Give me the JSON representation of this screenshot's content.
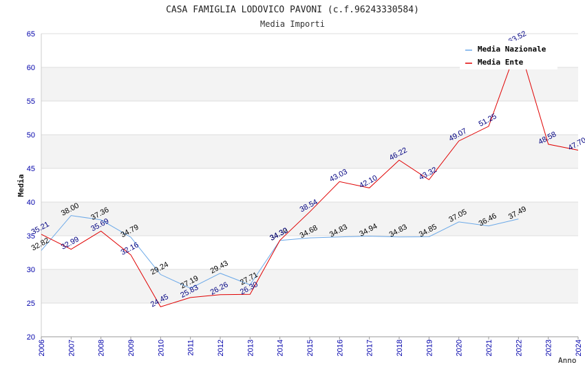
{
  "chart_data": {
    "type": "line",
    "title": "CASA FAMIGLIA LODOVICO PAVONI (c.f.96243330584)",
    "subtitle": "Media Importi",
    "xlabel": "Anno",
    "ylabel": "Media",
    "ylim": [
      20,
      65
    ],
    "yticks": [
      "20",
      "25",
      "30",
      "35",
      "40",
      "45",
      "50",
      "55",
      "60",
      "65"
    ],
    "categories": [
      "2006",
      "2007",
      "2008",
      "2009",
      "2010",
      "2011",
      "2012",
      "2013",
      "2014",
      "2015",
      "2016",
      "2017",
      "2018",
      "2019",
      "2020",
      "2021",
      "2022",
      "2023",
      "2024"
    ],
    "legend_position": "top-right",
    "series": [
      {
        "name": "Media Nazionale",
        "color": "#6aa8e8",
        "values": [
          32.82,
          38.0,
          37.36,
          34.79,
          29.24,
          27.19,
          29.43,
          27.71,
          34.3,
          34.68,
          34.83,
          34.94,
          34.83,
          34.85,
          37.05,
          36.46,
          37.49,
          null,
          null
        ],
        "labels": [
          "32.82",
          "38.00",
          "37.36",
          "34.79",
          "29.24",
          "27.19",
          "29.43",
          "27.71",
          "34.30",
          "34.68",
          "34.83",
          "34.94",
          "34.83",
          "34.85",
          "37.05",
          "36.46",
          "37.49",
          null,
          null
        ]
      },
      {
        "name": "Media Ente",
        "color": "#e00000",
        "values": [
          35.21,
          32.99,
          35.69,
          32.16,
          24.45,
          25.83,
          26.26,
          26.3,
          34.32,
          38.54,
          43.03,
          42.1,
          46.22,
          43.32,
          49.07,
          51.25,
          63.52,
          48.58,
          47.7
        ],
        "labels": [
          "35.21",
          "32.99",
          "35.69",
          "32.16",
          "24.45",
          "25.83",
          "26.26",
          "26.30",
          "34.32",
          "38.54",
          "43.03",
          "42.10",
          "46.22",
          "43.32",
          "49.07",
          "51.25",
          "63.52",
          "48.58",
          "47.70"
        ]
      }
    ]
  }
}
